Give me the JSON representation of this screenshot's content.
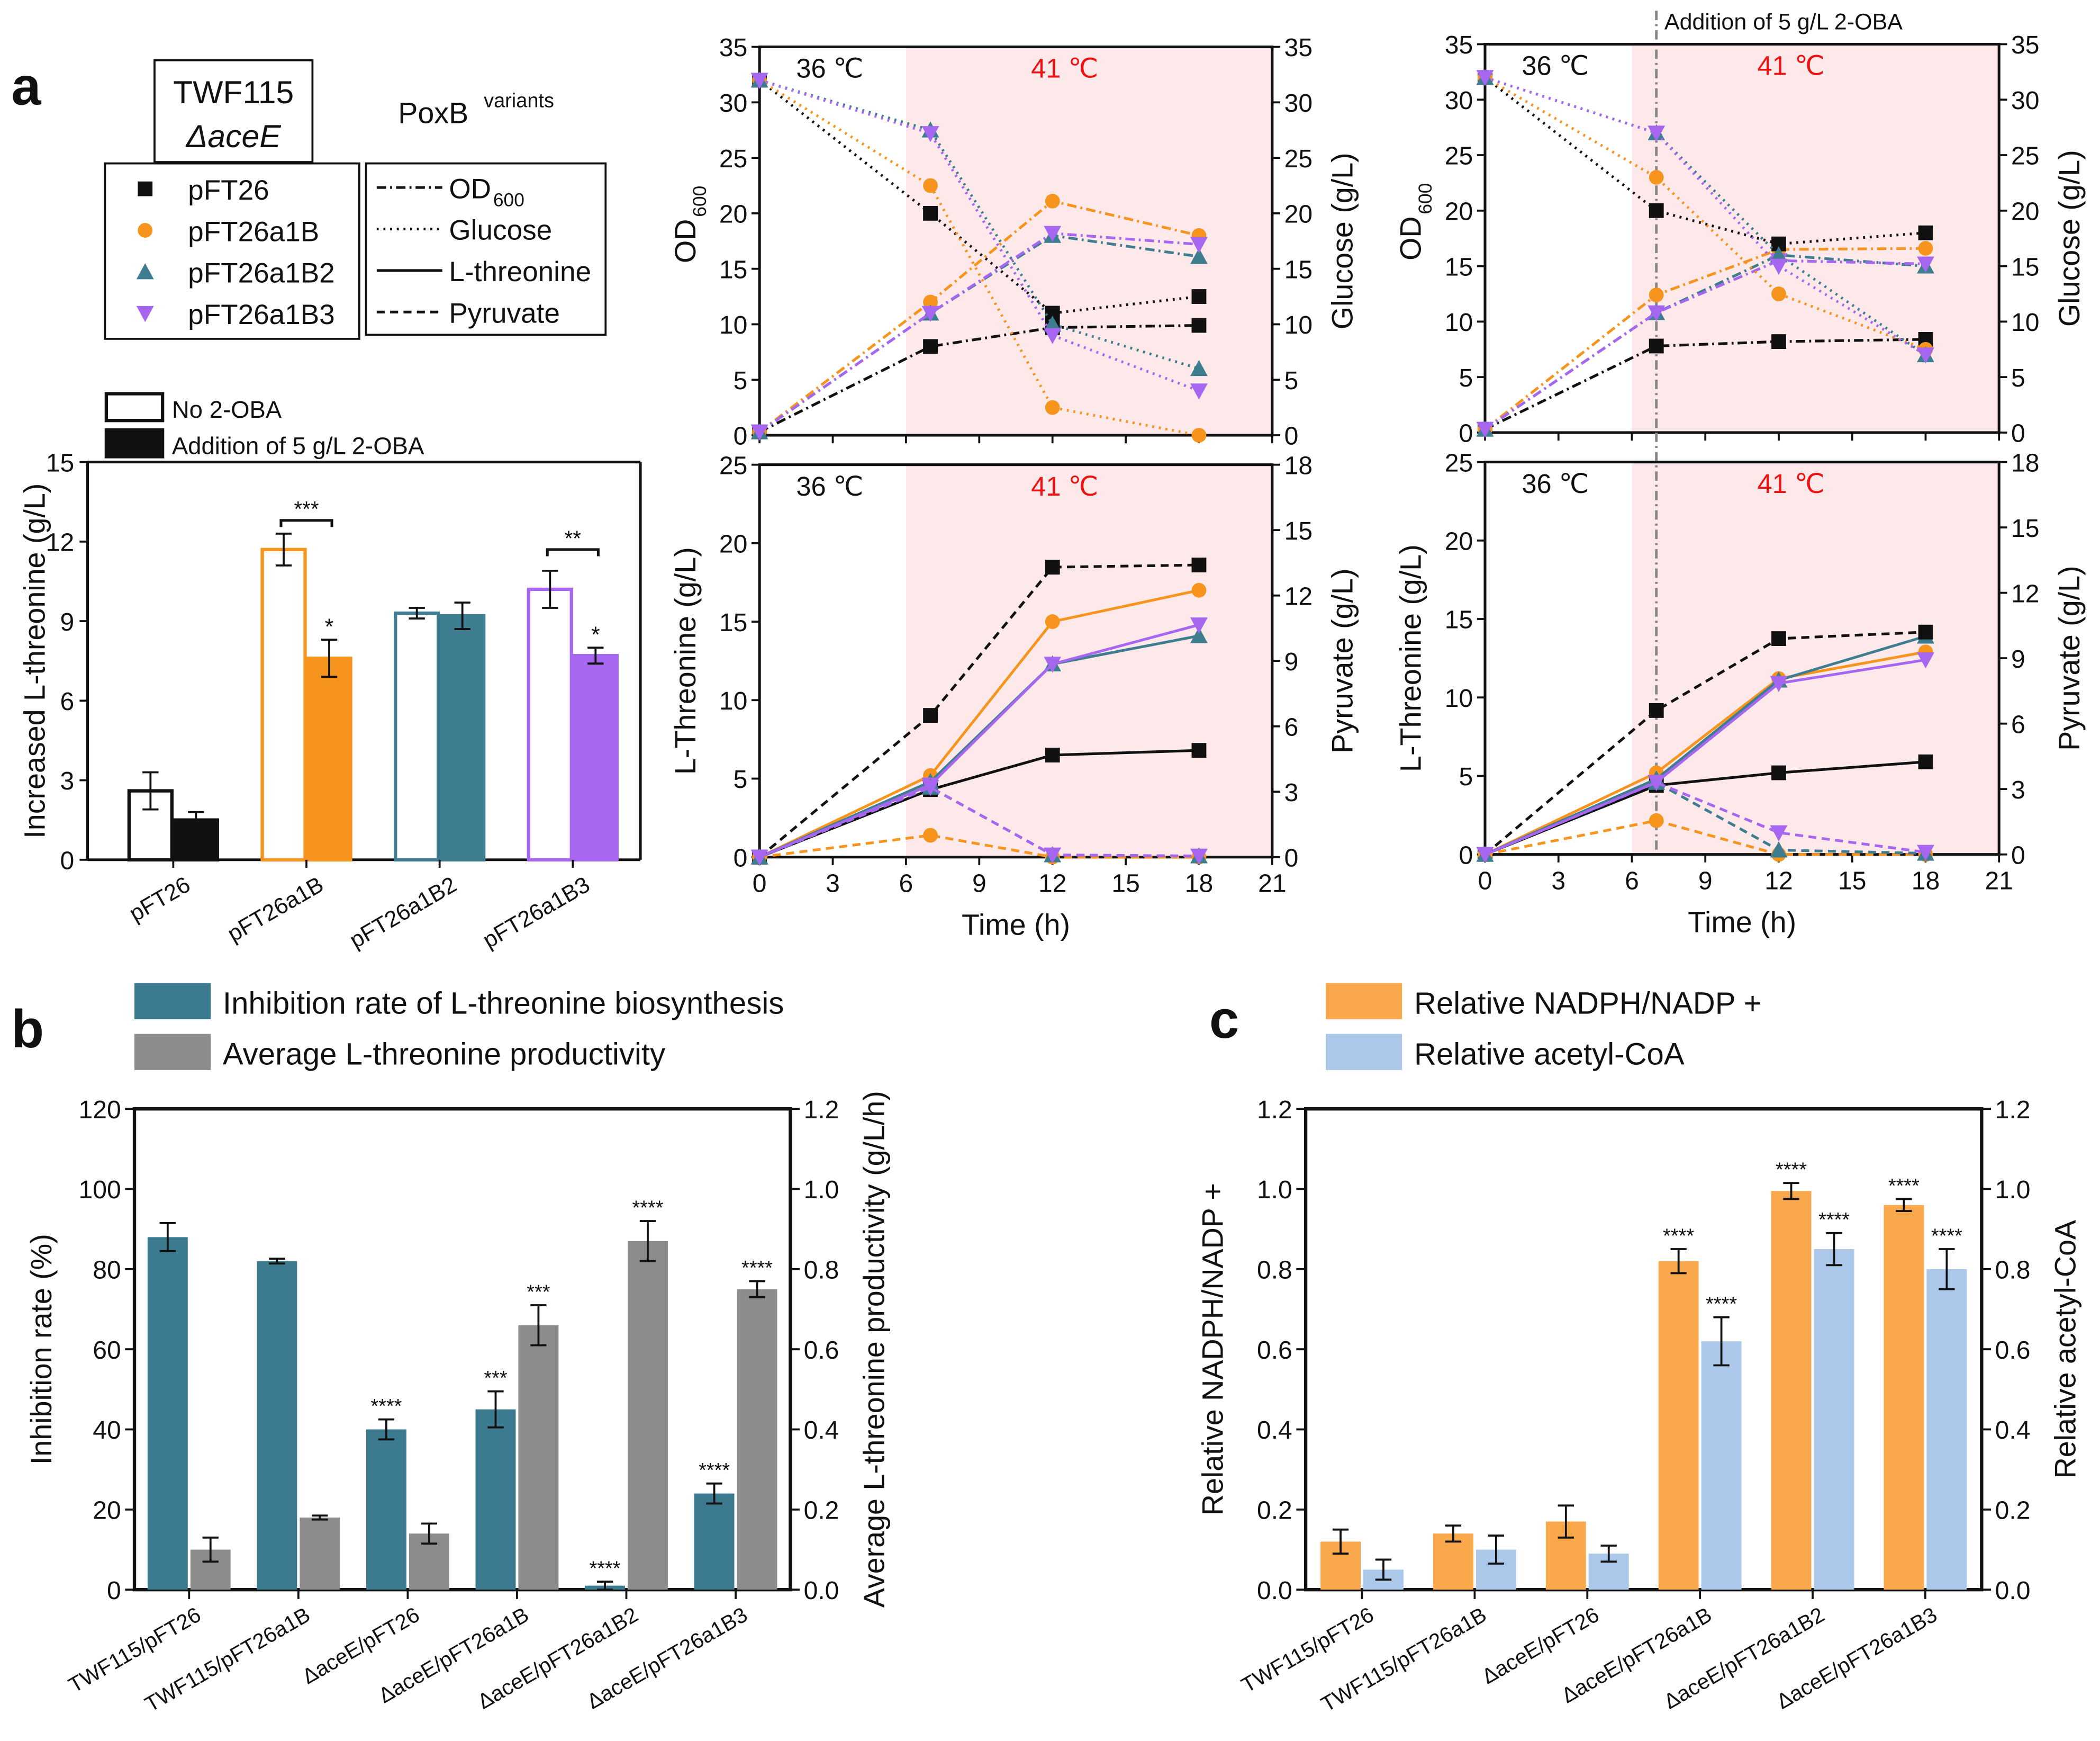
{
  "panel_labels": {
    "a": "a",
    "b": "b",
    "c": "c"
  },
  "colors": {
    "pFT26": "#111111",
    "pFT26a1B": "#f7941d",
    "pFT26a1B2": "#3e7d8f",
    "pFT26a1B3": "#a766f0",
    "shade": "#fde9e9",
    "hot_label": "#ee1111",
    "inhibition": "#3b7a8f",
    "productivity": "#8c8c8c",
    "nadph": "#f9a94b",
    "acetyl_coa": "#abc8ea"
  },
  "legend_a": {
    "host_line1": "TWF115",
    "host_line2": "ΔaceE",
    "variants_title": "PoxB",
    "variants_sup": "variants",
    "strains": [
      {
        "name": "pFT26",
        "marker": "square"
      },
      {
        "name": "pFT26a1B",
        "marker": "circle"
      },
      {
        "name": "pFT26a1B2",
        "marker": "triangle-up"
      },
      {
        "name": "pFT26a1B3",
        "marker": "triangle-down"
      }
    ],
    "line_types": [
      {
        "label": "OD",
        "sub": "600",
        "style": "dash-dot"
      },
      {
        "label": "Glucose",
        "sub": "",
        "style": "dotted"
      },
      {
        "label": "L-threonine",
        "sub": "",
        "style": "solid"
      },
      {
        "label": "Pyruvate",
        "sub": "",
        "style": "dashed"
      }
    ]
  },
  "legend_b": [
    "Inhibition rate of L-threonine biosynthesis",
    "Average L-threonine productivity"
  ],
  "legend_c": [
    "Relative NADPH/NADP +",
    "Relative acetyl-CoA"
  ],
  "chart_data": [
    {
      "type": "bar",
      "panel": "a",
      "ylabel": "Increased L-threonine (g/L)",
      "ylim": [
        0,
        15
      ],
      "yticks": [
        "0",
        "3",
        "6",
        "9",
        "12",
        "15"
      ],
      "categories": [
        "pFT26",
        "pFT26a1B",
        "pFT26a1B2",
        "pFT26a1B3"
      ],
      "series": [
        {
          "name": "No 2-OBA",
          "style": "open",
          "values": [
            2.6,
            11.7,
            9.3,
            10.2
          ],
          "errors": [
            0.7,
            0.6,
            0.2,
            0.7
          ],
          "stars": [
            "",
            "",
            "",
            ""
          ]
        },
        {
          "name": "Addition of 5 g/L 2-OBA",
          "style": "filled",
          "values": [
            1.5,
            7.6,
            9.2,
            7.7
          ],
          "errors": [
            0.3,
            0.7,
            0.5,
            0.3
          ],
          "stars": [
            "",
            "*",
            "",
            "*"
          ]
        }
      ],
      "significance": [
        {
          "category": "pFT26a1B",
          "label": "***",
          "y": 12.8
        },
        {
          "category": "pFT26a1B3",
          "label": "**",
          "y": 11.7
        }
      ],
      "grid": false,
      "legend": "top-left"
    },
    {
      "type": "line",
      "panel": "a",
      "condition": "No 2-OBA",
      "x": [
        0,
        7,
        12,
        18
      ],
      "xlim": [
        0,
        21
      ],
      "xticks": [
        "0",
        "3",
        "6",
        "9",
        "12",
        "15",
        "18",
        "21"
      ],
      "xlabel": "",
      "ylabel_left": "OD",
      "ylabel_left_sub": "600",
      "ylim_left": [
        0,
        35
      ],
      "yticks_left": [
        "0",
        "5",
        "10",
        "15",
        "20",
        "25",
        "30",
        "35"
      ],
      "ylabel_right": "Glucose (g/L)",
      "ylim_right": [
        0,
        35
      ],
      "yticks_right": [
        "0",
        "5",
        "10",
        "15",
        "20",
        "25",
        "30",
        "35"
      ],
      "zone_labels": [
        "36 ℃",
        "41 ℃"
      ],
      "shade_from": 6,
      "series": [
        {
          "strain": "pFT26",
          "variable": "OD600",
          "axis": "left",
          "values": [
            0.3,
            8,
            9.7,
            9.9
          ]
        },
        {
          "strain": "pFT26a1B",
          "variable": "OD600",
          "axis": "left",
          "values": [
            0.3,
            12,
            21.1,
            18
          ]
        },
        {
          "strain": "pFT26a1B2",
          "variable": "OD600",
          "axis": "left",
          "values": [
            0.3,
            11,
            18,
            16.1
          ]
        },
        {
          "strain": "pFT26a1B3",
          "variable": "OD600",
          "axis": "left",
          "values": [
            0.3,
            11,
            18.2,
            17.2
          ]
        },
        {
          "strain": "pFT26",
          "variable": "Glucose",
          "axis": "right",
          "values": [
            32,
            20,
            11,
            12.5
          ]
        },
        {
          "strain": "pFT26a1B",
          "variable": "Glucose",
          "axis": "right",
          "values": [
            32,
            22.5,
            2.5,
            0
          ]
        },
        {
          "strain": "pFT26a1B2",
          "variable": "Glucose",
          "axis": "right",
          "values": [
            32,
            27.5,
            10,
            6
          ]
        },
        {
          "strain": "pFT26a1B3",
          "variable": "Glucose",
          "axis": "right",
          "values": [
            32,
            27.2,
            9,
            4
          ]
        }
      ]
    },
    {
      "type": "line",
      "panel": "a",
      "condition": "No 2-OBA",
      "x": [
        0,
        7,
        12,
        18
      ],
      "xlim": [
        0,
        21
      ],
      "xticks": [
        "0",
        "3",
        "6",
        "9",
        "12",
        "15",
        "18",
        "21"
      ],
      "xlabel": "Time (h)",
      "ylabel_left": "L-Threonine (g/L)",
      "ylabel_left_sub": "",
      "ylim_left": [
        0,
        25
      ],
      "yticks_left": [
        "0",
        "5",
        "10",
        "15",
        "20",
        "25"
      ],
      "ylabel_right": "Pyruvate (g/L)",
      "ylim_right": [
        0,
        18
      ],
      "yticks_right": [
        "0",
        "3",
        "6",
        "9",
        "12",
        "15",
        "18"
      ],
      "zone_labels": [
        "36 ℃",
        "41 ℃"
      ],
      "shade_from": 6,
      "series": [
        {
          "strain": "pFT26",
          "variable": "L-threonine",
          "axis": "left",
          "values": [
            0,
            4.3,
            6.5,
            6.8
          ]
        },
        {
          "strain": "pFT26a1B",
          "variable": "L-threonine",
          "axis": "left",
          "values": [
            0,
            5.2,
            15,
            17
          ]
        },
        {
          "strain": "pFT26a1B2",
          "variable": "L-threonine",
          "axis": "left",
          "values": [
            0,
            4.8,
            12.3,
            14.1
          ]
        },
        {
          "strain": "pFT26a1B3",
          "variable": "L-threonine",
          "axis": "left",
          "values": [
            0,
            4.6,
            12.3,
            14.8
          ]
        },
        {
          "strain": "pFT26",
          "variable": "Pyruvate",
          "axis": "right",
          "values": [
            0,
            6.5,
            13.3,
            13.4
          ]
        },
        {
          "strain": "pFT26a1B",
          "variable": "Pyruvate",
          "axis": "right",
          "values": [
            0,
            1.0,
            0,
            0
          ]
        },
        {
          "strain": "pFT26a1B2",
          "variable": "Pyruvate",
          "axis": "right",
          "values": [
            0,
            3.2,
            0.1,
            0.05
          ]
        },
        {
          "strain": "pFT26a1B3",
          "variable": "Pyruvate",
          "axis": "right",
          "values": [
            0,
            3.2,
            0.1,
            0.05
          ]
        }
      ]
    },
    {
      "type": "line",
      "panel": "a",
      "condition": "Addition of 5 g/L 2-OBA",
      "addition_label": "Addition of 5 g/L 2-OBA",
      "addition_time": 7,
      "x": [
        0,
        7,
        12,
        18
      ],
      "xlim": [
        0,
        21
      ],
      "xticks": [
        "0",
        "3",
        "6",
        "9",
        "12",
        "15",
        "18",
        "21"
      ],
      "xlabel": "",
      "ylabel_left": "OD",
      "ylabel_left_sub": "600",
      "ylim_left": [
        0,
        35
      ],
      "yticks_left": [
        "0",
        "5",
        "10",
        "15",
        "20",
        "25",
        "30",
        "35"
      ],
      "ylabel_right": "Glucose (g/L)",
      "ylim_right": [
        0,
        35
      ],
      "yticks_right": [
        "0",
        "5",
        "10",
        "15",
        "20",
        "25",
        "30",
        "35"
      ],
      "zone_labels": [
        "36 ℃",
        "41 ℃"
      ],
      "shade_from": 6,
      "series": [
        {
          "strain": "pFT26",
          "variable": "OD600",
          "axis": "left",
          "values": [
            0.3,
            7.8,
            8.2,
            8.4
          ]
        },
        {
          "strain": "pFT26a1B",
          "variable": "OD600",
          "axis": "left",
          "values": [
            0.3,
            12.4,
            16.5,
            16.6
          ]
        },
        {
          "strain": "pFT26a1B2",
          "variable": "OD600",
          "axis": "left",
          "values": [
            0.3,
            10.8,
            16,
            15
          ]
        },
        {
          "strain": "pFT26a1B3",
          "variable": "OD600",
          "axis": "left",
          "values": [
            0.3,
            10.8,
            15.5,
            15.2
          ]
        },
        {
          "strain": "pFT26",
          "variable": "Glucose",
          "axis": "right",
          "values": [
            32,
            20,
            17,
            18
          ]
        },
        {
          "strain": "pFT26a1B",
          "variable": "Glucose",
          "axis": "right",
          "values": [
            32,
            23,
            12.5,
            7.5
          ]
        },
        {
          "strain": "pFT26a1B2",
          "variable": "Glucose",
          "axis": "right",
          "values": [
            32,
            27,
            16,
            7
          ]
        },
        {
          "strain": "pFT26a1B3",
          "variable": "Glucose",
          "axis": "right",
          "values": [
            32,
            27,
            15,
            7
          ]
        }
      ]
    },
    {
      "type": "line",
      "panel": "a",
      "condition": "Addition of 5 g/L 2-OBA",
      "addition_time": 7,
      "x": [
        0,
        7,
        12,
        18
      ],
      "xlim": [
        0,
        21
      ],
      "xticks": [
        "0",
        "3",
        "6",
        "9",
        "12",
        "15",
        "18",
        "21"
      ],
      "xlabel": "Time (h)",
      "ylabel_left": "L-Threonine (g/L)",
      "ylabel_left_sub": "",
      "ylim_left": [
        0,
        25
      ],
      "yticks_left": [
        "0",
        "5",
        "10",
        "15",
        "20",
        "25"
      ],
      "ylabel_right": "Pyruvate (g/L)",
      "ylim_right": [
        0,
        18
      ],
      "yticks_right": [
        "0",
        "3",
        "6",
        "9",
        "12",
        "15",
        "18"
      ],
      "zone_labels": [
        "36 ℃",
        "41 ℃"
      ],
      "shade_from": 6,
      "series": [
        {
          "strain": "pFT26",
          "variable": "L-threonine",
          "axis": "left",
          "values": [
            0,
            4.4,
            5.2,
            5.9
          ]
        },
        {
          "strain": "pFT26a1B",
          "variable": "L-threonine",
          "axis": "left",
          "values": [
            0,
            5.2,
            11.2,
            12.9
          ]
        },
        {
          "strain": "pFT26a1B2",
          "variable": "L-threonine",
          "axis": "left",
          "values": [
            0,
            4.8,
            11.1,
            13.9
          ]
        },
        {
          "strain": "pFT26a1B3",
          "variable": "L-threonine",
          "axis": "left",
          "values": [
            0,
            4.6,
            10.9,
            12.4
          ]
        },
        {
          "strain": "pFT26",
          "variable": "Pyruvate",
          "axis": "right",
          "values": [
            0,
            6.6,
            9.9,
            10.2
          ]
        },
        {
          "strain": "pFT26a1B",
          "variable": "Pyruvate",
          "axis": "right",
          "values": [
            0,
            1.55,
            0,
            0
          ]
        },
        {
          "strain": "pFT26a1B2",
          "variable": "Pyruvate",
          "axis": "right",
          "values": [
            0,
            3.3,
            0.2,
            0.05
          ]
        },
        {
          "strain": "pFT26a1B3",
          "variable": "Pyruvate",
          "axis": "right",
          "values": [
            0,
            3.3,
            1.0,
            0.1
          ]
        }
      ]
    },
    {
      "type": "bar",
      "panel": "b",
      "categories": [
        "TWF115/pFT26",
        "TWF115/pFT26a1B",
        "ΔaceE/pFT26",
        "ΔaceE/pFT26a1B",
        "ΔaceE/pFT26a1B2",
        "ΔaceE/pFT26a1B3"
      ],
      "ylabel_left": "Inhibition rate (%)",
      "ylim_left": [
        0,
        120
      ],
      "yticks_left": [
        "0",
        "20",
        "40",
        "60",
        "80",
        "100",
        "120"
      ],
      "ylabel_right": "Average L-threonine productivity  (g/L/h)",
      "ylim_right": [
        0,
        1.2
      ],
      "yticks_right": [
        "0.0",
        "0.2",
        "0.4",
        "0.6",
        "0.8",
        "1.0",
        "1.2"
      ],
      "series": [
        {
          "name": "Inhibition rate of L-threonine biosynthesis",
          "axis": "left",
          "values": [
            88,
            82,
            40,
            45,
            1,
            24
          ],
          "errors": [
            3.5,
            0.6,
            2.5,
            4.5,
            1,
            2.5
          ],
          "stars": [
            "",
            "",
            "****",
            "***",
            "****",
            "****"
          ]
        },
        {
          "name": "Average L-threonine productivity",
          "axis": "right",
          "values": [
            0.1,
            0.18,
            0.14,
            0.66,
            0.87,
            0.75
          ],
          "errors": [
            0.03,
            0.005,
            0.025,
            0.05,
            0.05,
            0.02
          ],
          "stars": [
            "",
            "",
            "",
            "***",
            "****",
            "****"
          ]
        }
      ],
      "grid": false,
      "legend": "top"
    },
    {
      "type": "bar",
      "panel": "c",
      "categories": [
        "TWF115/pFT26",
        "TWF115/pFT26a1B",
        "ΔaceE/pFT26",
        "ΔaceE/pFT26a1B",
        "ΔaceE/pFT26a1B2",
        "ΔaceE/pFT26a1B3"
      ],
      "ylabel_left": "Relative NADPH/NADP +",
      "ylim_left": [
        0,
        1.2
      ],
      "yticks_left": [
        "0.0",
        "0.2",
        "0.4",
        "0.6",
        "0.8",
        "1.0",
        "1.2"
      ],
      "ylabel_right": "Relative acetyl-CoA",
      "ylim_right": [
        0,
        1.2
      ],
      "yticks_right": [
        "0.0",
        "0.2",
        "0.4",
        "0.6",
        "0.8",
        "1.0",
        "1.2"
      ],
      "series": [
        {
          "name": "Relative NADPH/NADP +",
          "axis": "left",
          "values": [
            0.12,
            0.14,
            0.17,
            0.82,
            0.995,
            0.96
          ],
          "errors": [
            0.03,
            0.02,
            0.04,
            0.03,
            0.02,
            0.015
          ],
          "stars": [
            "",
            "",
            "",
            "****",
            "****",
            "****"
          ]
        },
        {
          "name": "Relative acetyl-CoA",
          "axis": "right",
          "values": [
            0.05,
            0.1,
            0.09,
            0.62,
            0.85,
            0.8
          ],
          "errors": [
            0.025,
            0.035,
            0.02,
            0.06,
            0.04,
            0.05
          ],
          "stars": [
            "",
            "",
            "",
            "****",
            "****",
            "****"
          ]
        }
      ],
      "grid": false,
      "legend": "top"
    }
  ]
}
